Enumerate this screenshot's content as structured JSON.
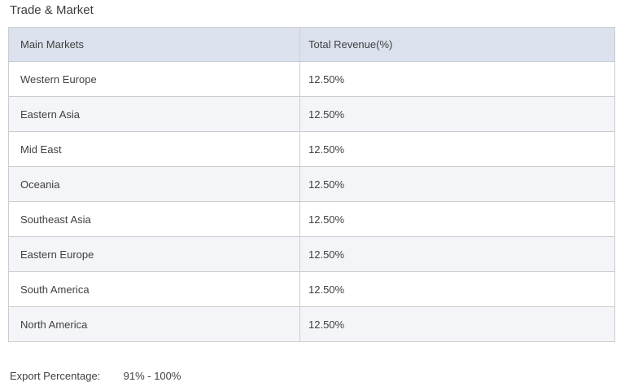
{
  "page": {
    "title": "Trade & Market"
  },
  "table": {
    "columns": [
      "Main Markets",
      "Total Revenue(%)"
    ],
    "rows": [
      {
        "market": "Western Europe",
        "revenue": "12.50%"
      },
      {
        "market": "Eastern Asia",
        "revenue": "12.50%"
      },
      {
        "market": "Mid East",
        "revenue": "12.50%"
      },
      {
        "market": "Oceania",
        "revenue": "12.50%"
      },
      {
        "market": "Southeast Asia",
        "revenue": "12.50%"
      },
      {
        "market": "Eastern Europe",
        "revenue": "12.50%"
      },
      {
        "market": "South America",
        "revenue": "12.50%"
      },
      {
        "market": "North America",
        "revenue": "12.50%"
      }
    ]
  },
  "footer": {
    "label": "Export Percentage:",
    "value": "91% - 100%"
  },
  "colors": {
    "header_bg": "#dbe2ed",
    "alt_row_bg": "#f4f5f9",
    "border": "#cccccc",
    "text": "#404040"
  }
}
